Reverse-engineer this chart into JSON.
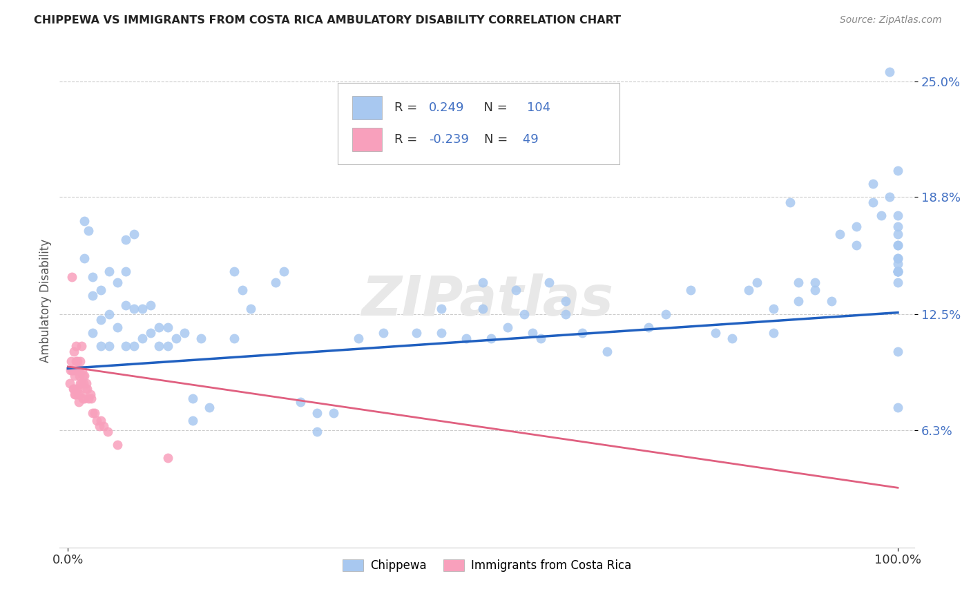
{
  "title": "CHIPPEWA VS IMMIGRANTS FROM COSTA RICA AMBULATORY DISABILITY CORRELATION CHART",
  "source_text": "Source: ZipAtlas.com",
  "ylabel": "Ambulatory Disability",
  "xlim": [
    0.0,
    1.0
  ],
  "ylim": [
    0.0,
    0.265
  ],
  "xtick_labels": [
    "0.0%",
    "100.0%"
  ],
  "ytick_labels": [
    "6.3%",
    "12.5%",
    "18.8%",
    "25.0%"
  ],
  "ytick_values": [
    0.063,
    0.125,
    0.188,
    0.25
  ],
  "chippewa_color": "#A8C8F0",
  "costa_rica_color": "#F8A0BC",
  "line_chippewa_color": "#2060C0",
  "line_costa_rica_color": "#E06080",
  "watermark": "ZIPatlas",
  "chippewa_scatter_x": [
    0.02,
    0.02,
    0.025,
    0.03,
    0.03,
    0.03,
    0.04,
    0.04,
    0.04,
    0.05,
    0.05,
    0.05,
    0.06,
    0.06,
    0.07,
    0.07,
    0.07,
    0.07,
    0.08,
    0.08,
    0.08,
    0.09,
    0.09,
    0.1,
    0.1,
    0.11,
    0.11,
    0.12,
    0.12,
    0.13,
    0.14,
    0.15,
    0.15,
    0.16,
    0.17,
    0.2,
    0.2,
    0.21,
    0.22,
    0.25,
    0.26,
    0.28,
    0.3,
    0.3,
    0.32,
    0.35,
    0.38,
    0.4,
    0.42,
    0.45,
    0.45,
    0.48,
    0.5,
    0.5,
    0.51,
    0.53,
    0.54,
    0.55,
    0.56,
    0.57,
    0.58,
    0.6,
    0.6,
    0.62,
    0.65,
    0.7,
    0.72,
    0.75,
    0.78,
    0.8,
    0.82,
    0.83,
    0.85,
    0.85,
    0.87,
    0.88,
    0.88,
    0.9,
    0.9,
    0.92,
    0.93,
    0.95,
    0.95,
    0.97,
    0.97,
    0.98,
    0.99,
    0.99,
    1.0,
    1.0,
    1.0,
    1.0,
    1.0,
    1.0,
    1.0,
    1.0,
    1.0,
    1.0,
    1.0,
    1.0,
    1.0,
    1.0,
    1.0,
    1.0
  ],
  "chippewa_scatter_y": [
    0.175,
    0.155,
    0.17,
    0.145,
    0.135,
    0.115,
    0.138,
    0.122,
    0.108,
    0.148,
    0.125,
    0.108,
    0.142,
    0.118,
    0.165,
    0.148,
    0.13,
    0.108,
    0.168,
    0.128,
    0.108,
    0.128,
    0.112,
    0.13,
    0.115,
    0.118,
    0.108,
    0.118,
    0.108,
    0.112,
    0.115,
    0.08,
    0.068,
    0.112,
    0.075,
    0.112,
    0.148,
    0.138,
    0.128,
    0.142,
    0.148,
    0.078,
    0.072,
    0.062,
    0.072,
    0.112,
    0.115,
    0.225,
    0.115,
    0.128,
    0.115,
    0.112,
    0.142,
    0.128,
    0.112,
    0.118,
    0.138,
    0.125,
    0.115,
    0.112,
    0.142,
    0.125,
    0.132,
    0.115,
    0.105,
    0.118,
    0.125,
    0.138,
    0.115,
    0.112,
    0.138,
    0.142,
    0.128,
    0.115,
    0.185,
    0.132,
    0.142,
    0.142,
    0.138,
    0.132,
    0.168,
    0.172,
    0.162,
    0.185,
    0.195,
    0.178,
    0.188,
    0.255,
    0.168,
    0.202,
    0.155,
    0.172,
    0.148,
    0.152,
    0.162,
    0.142,
    0.148,
    0.178,
    0.148,
    0.162,
    0.155,
    0.148,
    0.105,
    0.075
  ],
  "costa_rica_scatter_x": [
    0.002,
    0.003,
    0.004,
    0.005,
    0.005,
    0.006,
    0.006,
    0.007,
    0.007,
    0.008,
    0.008,
    0.009,
    0.009,
    0.01,
    0.01,
    0.01,
    0.011,
    0.011,
    0.012,
    0.012,
    0.013,
    0.013,
    0.014,
    0.014,
    0.015,
    0.015,
    0.016,
    0.016,
    0.017,
    0.018,
    0.018,
    0.019,
    0.02,
    0.02,
    0.021,
    0.022,
    0.023,
    0.025,
    0.027,
    0.028,
    0.03,
    0.032,
    0.035,
    0.038,
    0.04,
    0.043,
    0.048,
    0.06,
    0.12
  ],
  "costa_rica_scatter_y": [
    0.088,
    0.095,
    0.1,
    0.145,
    0.095,
    0.095,
    0.085,
    0.105,
    0.085,
    0.092,
    0.082,
    0.095,
    0.082,
    0.108,
    0.1,
    0.085,
    0.1,
    0.085,
    0.095,
    0.082,
    0.095,
    0.078,
    0.092,
    0.082,
    0.1,
    0.088,
    0.108,
    0.088,
    0.095,
    0.092,
    0.08,
    0.088,
    0.092,
    0.08,
    0.085,
    0.088,
    0.085,
    0.08,
    0.082,
    0.08,
    0.072,
    0.072,
    0.068,
    0.065,
    0.068,
    0.065,
    0.062,
    0.055,
    0.048
  ],
  "chippewa_line_x": [
    0.0,
    1.0
  ],
  "chippewa_line_y": [
    0.096,
    0.126
  ],
  "costa_rica_line_x": [
    0.0,
    1.0
  ],
  "costa_rica_line_y": [
    0.097,
    0.032
  ],
  "background_color": "#FFFFFF",
  "grid_color": "#CCCCCC",
  "tick_color": "#4472C4",
  "label_color_dark": "#333333",
  "label_color_blue": "#4472C4"
}
